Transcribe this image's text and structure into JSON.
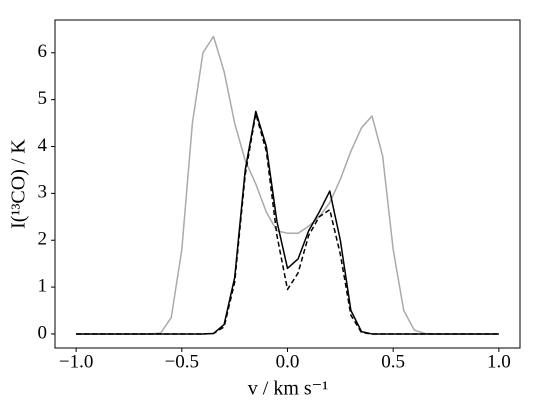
{
  "chart_data": {
    "type": "line",
    "xlabel": "v / km s⁻¹",
    "ylabel": "I(¹³CO) / K",
    "x": [
      -1.0,
      -0.95,
      -0.9,
      -0.85,
      -0.8,
      -0.75,
      -0.7,
      -0.65,
      -0.6,
      -0.55,
      -0.5,
      -0.45,
      -0.4,
      -0.35,
      -0.3,
      -0.25,
      -0.2,
      -0.15,
      -0.1,
      -0.05,
      0.0,
      0.05,
      0.1,
      0.15,
      0.2,
      0.25,
      0.3,
      0.35,
      0.4,
      0.45,
      0.5,
      0.55,
      0.6,
      0.65,
      0.7,
      0.75,
      0.8,
      0.85,
      0.9,
      0.95,
      1.0
    ],
    "series": [
      {
        "color": "#aaaaaa",
        "linestyle": "solid",
        "values": [
          0,
          0,
          0,
          0,
          0,
          0,
          0,
          0,
          0.02,
          0.35,
          1.8,
          4.5,
          6.0,
          6.35,
          5.6,
          4.5,
          3.7,
          3.2,
          2.6,
          2.2,
          2.15,
          2.15,
          2.3,
          2.5,
          2.8,
          3.3,
          3.9,
          4.4,
          4.65,
          3.8,
          1.8,
          0.5,
          0.08,
          0.01,
          0,
          0,
          0,
          0,
          0,
          0,
          0
        ]
      },
      {
        "color": "#000000",
        "linestyle": "solid",
        "values": [
          0,
          0,
          0,
          0,
          0,
          0,
          0,
          0,
          0,
          0,
          0,
          0,
          0,
          0.01,
          0.2,
          1.2,
          3.5,
          4.75,
          4.0,
          2.4,
          1.4,
          1.6,
          2.2,
          2.6,
          3.05,
          2.0,
          0.5,
          0.05,
          0,
          0,
          0,
          0,
          0,
          0,
          0,
          0,
          0,
          0,
          0,
          0,
          0
        ]
      },
      {
        "color": "#000000",
        "linestyle": "dashed",
        "values": [
          0,
          0,
          0,
          0,
          0,
          0,
          0,
          0,
          0,
          0,
          0,
          0,
          0,
          0.01,
          0.15,
          1.1,
          3.4,
          4.7,
          3.9,
          2.1,
          0.95,
          1.3,
          2.1,
          2.5,
          2.65,
          1.7,
          0.4,
          0.03,
          0,
          0,
          0,
          0,
          0,
          0,
          0,
          0,
          0,
          0,
          0,
          0,
          0
        ]
      }
    ],
    "xlim": [
      -1.1,
      1.1
    ],
    "ylim": [
      -0.3,
      6.7
    ],
    "xticks": [
      {
        "value": -1.0,
        "label": "−1.0"
      },
      {
        "value": -0.5,
        "label": "−0.5"
      },
      {
        "value": 0.0,
        "label": "0.0"
      },
      {
        "value": 0.5,
        "label": "0.5"
      },
      {
        "value": 1.0,
        "label": "1.0"
      }
    ],
    "yticks": [
      0,
      1,
      2,
      3,
      4,
      5,
      6
    ],
    "grid": false
  }
}
